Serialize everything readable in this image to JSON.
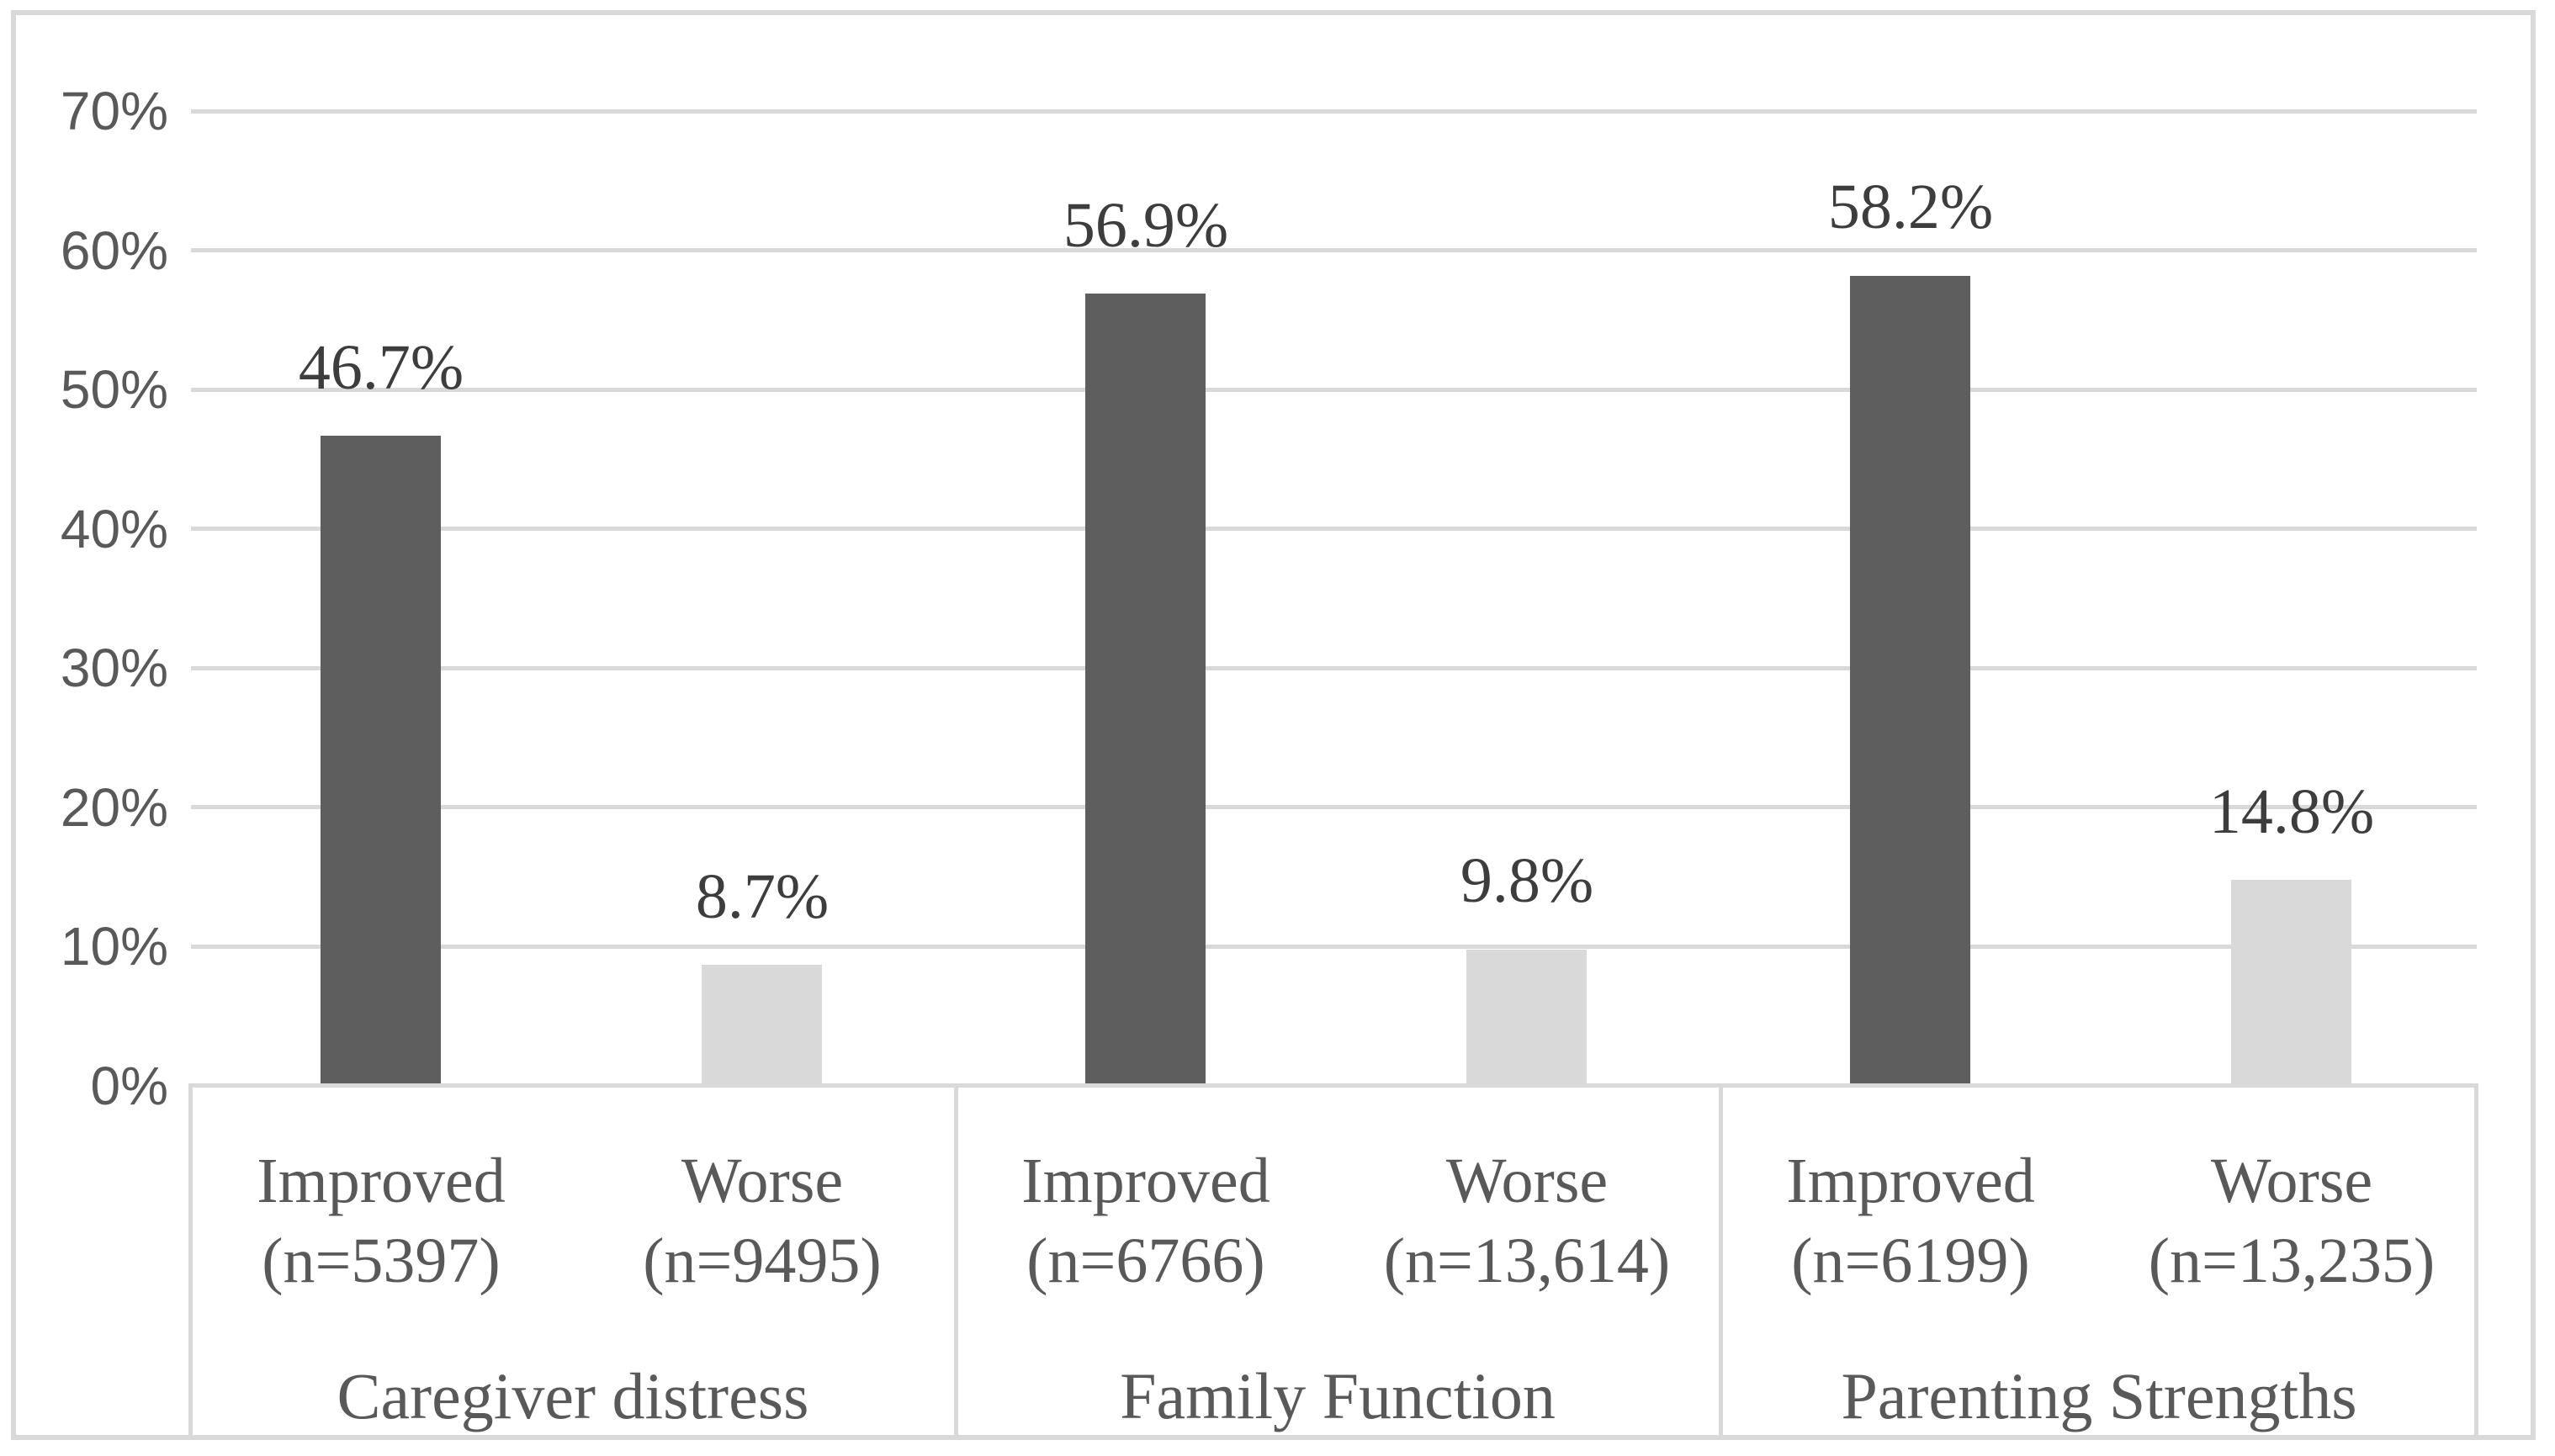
{
  "chart_data": {
    "type": "bar",
    "title": "",
    "xlabel": "",
    "ylabel": "",
    "ylim": [
      0,
      70
    ],
    "yticks": [
      "70%",
      "60%",
      "50%",
      "40%",
      "30%",
      "20%",
      "10%",
      "0%"
    ],
    "grid": true,
    "legend": "none",
    "colors": {
      "improved_bar": "#5e5e5e",
      "worse_bar": "#d9d9d9",
      "gridline": "#d9d9d9"
    },
    "groups": [
      {
        "label": "Caregiver distress",
        "bars": [
          {
            "category": "Improved",
            "n_label": "(n=5397)",
            "value": 46.7,
            "value_label": "46.7%",
            "series": "Improved"
          },
          {
            "category": "Worse",
            "n_label": "(n=9495)",
            "value": 8.7,
            "value_label": "8.7%",
            "series": "Worse"
          }
        ]
      },
      {
        "label": "Family Function",
        "bars": [
          {
            "category": "Improved",
            "n_label": "(n=6766)",
            "value": 56.9,
            "value_label": "56.9%",
            "series": "Improved"
          },
          {
            "category": "Worse",
            "n_label": "(n=13,614)",
            "value": 9.8,
            "value_label": "9.8%",
            "series": "Worse"
          }
        ]
      },
      {
        "label": "Parenting Strengths",
        "bars": [
          {
            "category": "Improved",
            "n_label": "(n=6199)",
            "value": 58.2,
            "value_label": "58.2%",
            "series": "Improved"
          },
          {
            "category": "Worse",
            "n_label": "(n=13,235)",
            "value": 14.8,
            "value_label": "14.8%",
            "series": "Worse"
          }
        ]
      }
    ]
  }
}
